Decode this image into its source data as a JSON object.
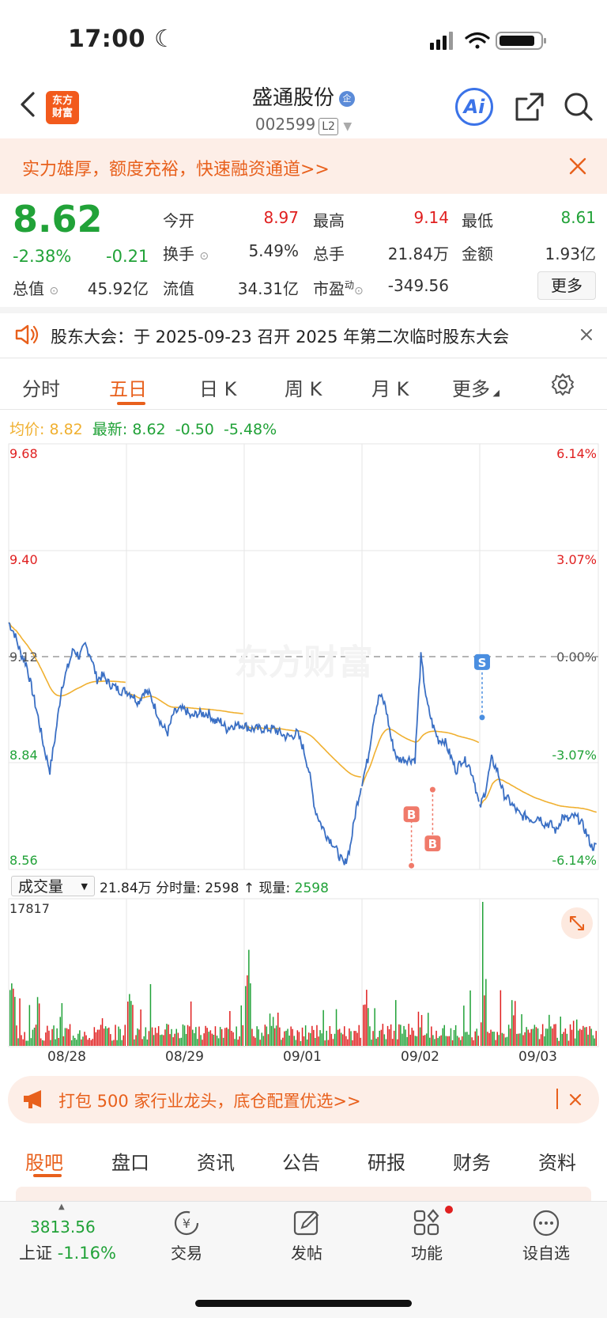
{
  "status_bar": {
    "time": "17:00"
  },
  "header": {
    "logo_text": "东方财富",
    "stock_name": "盛通股份",
    "name_badge": "企",
    "stock_code": "002599",
    "level_badge": "L2",
    "ai_label": "Ai"
  },
  "banner": {
    "text": "实力雄厚，额度充裕，快速融资通道>>"
  },
  "quote": {
    "price": "8.62",
    "change_pct": "-2.38%",
    "change": "-0.21",
    "open_label": "今开",
    "open": "8.97",
    "high_label": "最高",
    "high": "9.14",
    "low_label": "最低",
    "low": "8.61",
    "turnover_label": "换手",
    "turnover": "5.49%",
    "volume_label": "总手",
    "volume": "21.84万",
    "amount_label": "金额",
    "amount": "1.93亿",
    "mcap_label": "总值",
    "mcap": "45.92亿",
    "float_label": "流值",
    "float_mcap": "34.31亿",
    "pe_label": "市盈",
    "pe_sup": "动",
    "pe": "-349.56",
    "more": "更多"
  },
  "notice": {
    "text": "股东大会：于 2025-09-23 召开 2025 年第二次临时股东大会"
  },
  "chart_tabs": [
    {
      "label": "分时"
    },
    {
      "label": "五日"
    },
    {
      "label": "日 K"
    },
    {
      "label": "周 K"
    },
    {
      "label": "月 K"
    },
    {
      "label": "更多"
    }
  ],
  "chart_legend": {
    "avg_label": "均价:",
    "avg": "8.82",
    "latest_label": "最新:",
    "latest": "8.62",
    "latest_chg": "-0.50",
    "latest_pct": "-5.48%"
  },
  "volume_panel": {
    "selector": "成交量",
    "info_prefix": "21.84万 分时量: 2598 ↑ 现量:",
    "now_volume": "2598",
    "max_label": "17817"
  },
  "watermark": "东方财富",
  "colors": {
    "up": "#e02020",
    "down": "#21a238",
    "price_line": "#3a6fc4",
    "avg_line": "#f0b030",
    "accent": "#e8601c"
  },
  "chart_data": {
    "type": "line",
    "title": "",
    "x_sessions": [
      "08/28",
      "08/29",
      "09/01",
      "09/02",
      "09/03"
    ],
    "y_ticks": [
      "9.68",
      "9.40",
      "9.12",
      "8.84",
      "8.56"
    ],
    "pct_ticks": [
      "6.14%",
      "3.07%",
      "0.00%",
      "-3.07%",
      "-6.14%"
    ],
    "ylim": [
      8.56,
      9.68
    ],
    "prev_close": 9.12,
    "series": [
      {
        "x": [
          0,
          0.05,
          0.1,
          0.15,
          0.2,
          0.25,
          0.3,
          0.35,
          0.4,
          0.45,
          0.5,
          0.55,
          0.6,
          0.65,
          0.7,
          0.75,
          0.8,
          0.85,
          0.9,
          0.95,
          1.0,
          1.05,
          1.1,
          1.15,
          1.2,
          1.25,
          1.3,
          1.35,
          1.4,
          1.45,
          1.5,
          1.55,
          1.6,
          1.65,
          1.7,
          1.75,
          1.8,
          1.85,
          1.9,
          1.95,
          2.0,
          2.05,
          2.1,
          2.15,
          2.2,
          2.25,
          2.3,
          2.35,
          2.4,
          2.45,
          2.5,
          2.55,
          2.6,
          2.65,
          2.7,
          2.75,
          2.8,
          2.85,
          2.9,
          2.95,
          3.0,
          3.05,
          3.1,
          3.15,
          3.2,
          3.25,
          3.3,
          3.35,
          3.4,
          3.45,
          3.5,
          3.55,
          3.6,
          3.65,
          3.7,
          3.75,
          3.8,
          3.85,
          3.9,
          3.95,
          4.0,
          4.05,
          4.1,
          4.15,
          4.2,
          4.25,
          4.3,
          4.35,
          4.4,
          4.45,
          4.5,
          4.55,
          4.6,
          4.65,
          4.7,
          4.75,
          4.8,
          4.85,
          4.9,
          4.95,
          5.0
        ],
        "values": [
          9.21,
          9.18,
          9.13,
          9.1,
          9.03,
          8.96,
          8.88,
          8.82,
          8.92,
          9.04,
          9.09,
          9.14,
          9.12,
          9.15,
          9.12,
          9.06,
          9.07,
          9.05,
          9.04,
          9.03,
          9.03,
          9.02,
          9.0,
          9.03,
          9.02,
          8.98,
          8.94,
          8.92,
          8.97,
          8.98,
          8.98,
          8.96,
          8.97,
          8.97,
          8.97,
          8.95,
          8.95,
          8.93,
          8.94,
          8.94,
          8.94,
          8.93,
          8.93,
          8.93,
          8.93,
          8.93,
          8.92,
          8.91,
          8.91,
          8.92,
          8.88,
          8.82,
          8.72,
          8.68,
          8.65,
          8.63,
          8.6,
          8.57,
          8.62,
          8.72,
          8.79,
          8.85,
          8.96,
          9.02,
          8.99,
          8.9,
          8.85,
          8.85,
          8.85,
          8.85,
          9.12,
          9.0,
          8.94,
          8.9,
          8.9,
          8.86,
          8.82,
          8.85,
          8.84,
          8.8,
          8.72,
          8.77,
          8.85,
          8.82,
          8.76,
          8.74,
          8.72,
          8.7,
          8.7,
          8.69,
          8.7,
          8.68,
          8.68,
          8.66,
          8.7,
          8.69,
          8.7,
          8.69,
          8.66,
          8.62,
          8.62
        ]
      }
    ]
  },
  "volume_data": {
    "max": 17817
  },
  "ad": {
    "text": "打包 500 家行业龙头，底仓配置优选>>"
  },
  "bottom_tabs": [
    {
      "label": "股吧"
    },
    {
      "label": "盘口"
    },
    {
      "label": "资讯"
    },
    {
      "label": "公告"
    },
    {
      "label": "研报"
    },
    {
      "label": "财务"
    },
    {
      "label": "资料"
    }
  ],
  "nav": {
    "index_value": "3813.56",
    "index_name": "上证",
    "index_chg": "-1.16%",
    "items": [
      {
        "label": "交易"
      },
      {
        "label": "发帖"
      },
      {
        "label": "功能"
      },
      {
        "label": "设自选"
      }
    ]
  },
  "trade_marks": {
    "buy": "B",
    "sell": "S"
  }
}
